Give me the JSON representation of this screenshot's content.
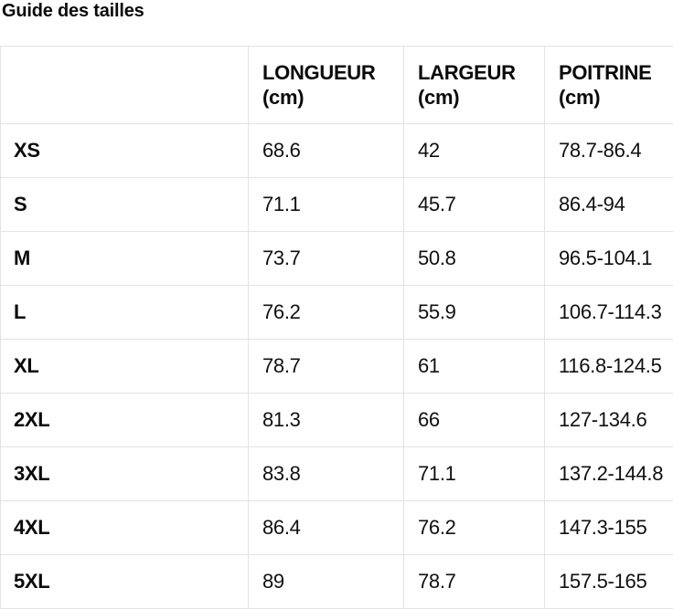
{
  "page": {
    "title": "Guide des tailles"
  },
  "size_table": {
    "columns": [
      {
        "label": ""
      },
      {
        "label": "LONGUEUR\n(cm)"
      },
      {
        "label": "LARGEUR\n(cm)"
      },
      {
        "label": "POITRINE\n(cm)"
      }
    ],
    "rows": [
      {
        "size": "XS",
        "longueur_cm": "68.6",
        "largeur_cm": "42",
        "poitrine_cm": "78.7-86.4"
      },
      {
        "size": "S",
        "longueur_cm": "71.1",
        "largeur_cm": "45.7",
        "poitrine_cm": "86.4-94"
      },
      {
        "size": "M",
        "longueur_cm": "73.7",
        "largeur_cm": "50.8",
        "poitrine_cm": "96.5-104.1"
      },
      {
        "size": "L",
        "longueur_cm": "76.2",
        "largeur_cm": "55.9",
        "poitrine_cm": "106.7-114.3"
      },
      {
        "size": "XL",
        "longueur_cm": "78.7",
        "largeur_cm": "61",
        "poitrine_cm": "116.8-124.5"
      },
      {
        "size": "2XL",
        "longueur_cm": "81.3",
        "largeur_cm": "66",
        "poitrine_cm": "127-134.6"
      },
      {
        "size": "3XL",
        "longueur_cm": "83.8",
        "largeur_cm": "71.1",
        "poitrine_cm": "137.2-144.8"
      },
      {
        "size": "4XL",
        "longueur_cm": "86.4",
        "largeur_cm": "76.2",
        "poitrine_cm": "147.3-155"
      },
      {
        "size": "5XL",
        "longueur_cm": "89",
        "largeur_cm": "78.7",
        "poitrine_cm": "157.5-165"
      }
    ],
    "colors": {
      "background": "#ffffff",
      "text": "#101010",
      "border": "#e3e3e3"
    }
  }
}
